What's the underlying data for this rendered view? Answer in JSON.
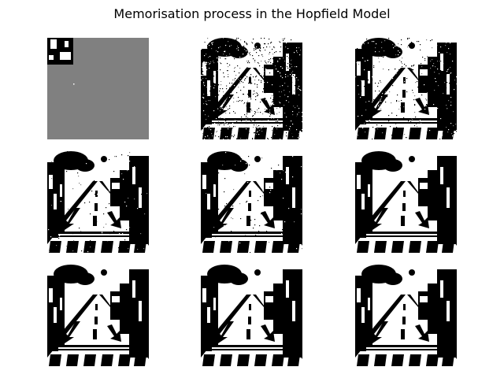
{
  "figure": {
    "title": "Memorisation process in the Hopfield Model"
  },
  "colors": {
    "background": "#ffffff",
    "on_pixel": "#000000",
    "off_pixel": "#ffffff",
    "unknown_pixel": "#808080"
  },
  "panels": [
    {
      "step": 1,
      "state": "mostly-unset"
    },
    {
      "step": 2,
      "state": "noisy"
    },
    {
      "step": 3,
      "state": "less-noisy"
    },
    {
      "step": 4,
      "state": "converging"
    },
    {
      "step": 5,
      "state": "converging"
    },
    {
      "step": 6,
      "state": "converged"
    },
    {
      "step": 7,
      "state": "converged"
    },
    {
      "step": 8,
      "state": "converged"
    },
    {
      "step": 9,
      "state": "converged"
    }
  ]
}
